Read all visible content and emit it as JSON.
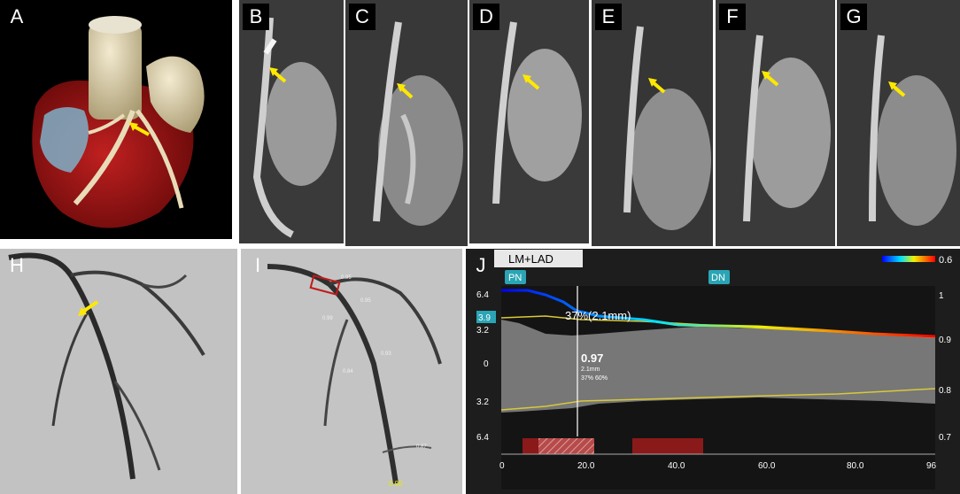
{
  "panels": {
    "A": {
      "label": "A"
    },
    "B": {
      "label": "B"
    },
    "C": {
      "label": "C"
    },
    "D": {
      "label": "D"
    },
    "E": {
      "label": "E"
    },
    "F": {
      "label": "F"
    },
    "G": {
      "label": "G"
    },
    "H": {
      "label": "H"
    },
    "I": {
      "label": "I",
      "ffr_values": [
        "0.95",
        "0.95",
        "0.99",
        "0.84",
        "0.93",
        "0.87",
        "0.90"
      ]
    },
    "J": {
      "label": "J"
    }
  },
  "qfr_plot": {
    "title": "LM+LAD",
    "colorbar_max": "0.6",
    "marker_pn": "PN",
    "marker_dn": "DN",
    "left_ticks": [
      "6.4",
      "3.2",
      "0",
      "3.2",
      "6.4"
    ],
    "left_highlight": "3.9",
    "right_ticks": [
      "1",
      "0.9",
      "0.8",
      "0.7"
    ],
    "x_ticks": [
      "0",
      "20.0",
      "40.0",
      "60.0",
      "80.0",
      "96"
    ],
    "stenosis_label": "37%(2.1mm)",
    "qfr_value": "0.97",
    "mld": "2.1mm",
    "stenosis_pct": "37% 60%",
    "colors": {
      "bg": "#1d1d1d",
      "lumen": "#7a7a7a",
      "ffr_line": "#d9c93a",
      "cursor": "#ffffff",
      "bar": "#8a1a1a"
    }
  }
}
